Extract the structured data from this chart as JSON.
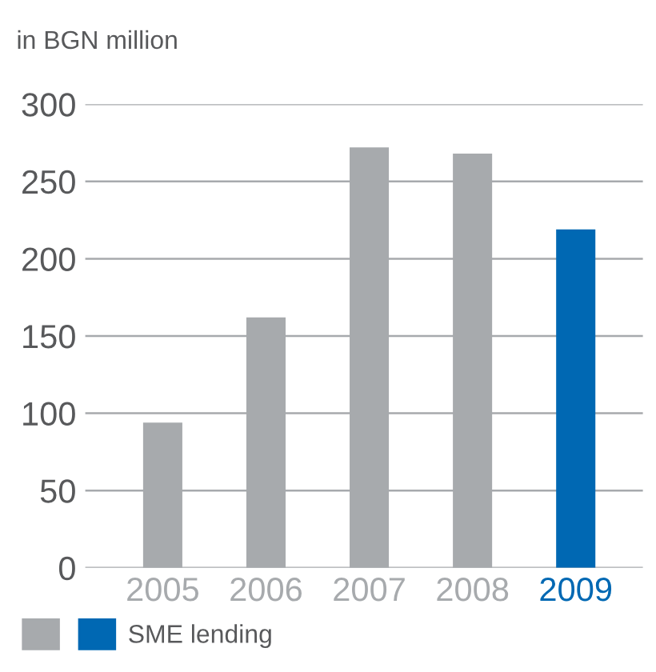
{
  "chart_data": {
    "type": "bar",
    "ylabel": "in BGN million",
    "categories": [
      "2005",
      "2006",
      "2007",
      "2008",
      "2009"
    ],
    "series": [
      {
        "color": "#a7aaad",
        "values": [
          94,
          162,
          272,
          268,
          null
        ]
      },
      {
        "name": "SME lending",
        "color": "#0068b3",
        "values": [
          null,
          null,
          null,
          null,
          219
        ]
      }
    ],
    "ylim": [
      0,
      300
    ],
    "yticks": [
      0,
      50,
      100,
      150,
      200,
      250,
      300
    ],
    "grid": "y",
    "legend": "bottom"
  }
}
